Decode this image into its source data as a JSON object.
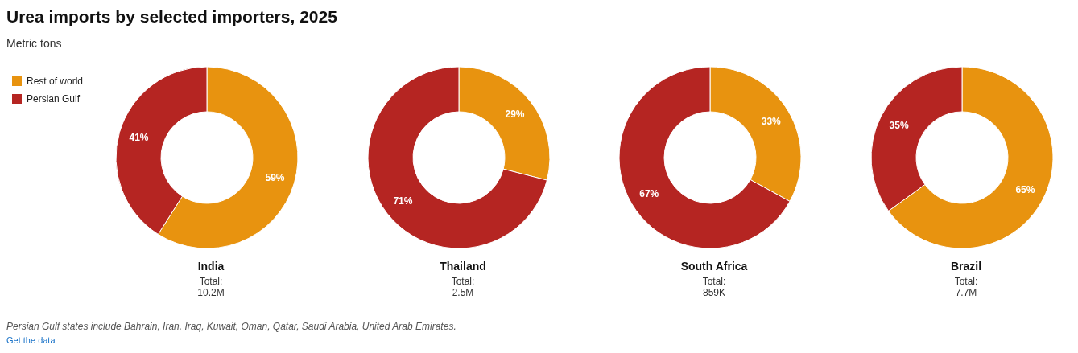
{
  "chart_data": [
    {
      "type": "other",
      "title": "Urea imports by selected importers, 2025",
      "subtitle": "Metric tons",
      "annotations": [
        "Persian Gulf states include Bahrain, Iran, Iraq, Kuwait, Oman, Qatar, Saudi Arabia, United Arab Emirates.",
        "Get the data"
      ]
    },
    {
      "type": "donut",
      "title": "India",
      "annotations": [
        "Total:",
        "10.2M"
      ],
      "categories": [
        "Rest of world",
        "Persian Gulf"
      ],
      "values": [
        59,
        41
      ],
      "value_labels": [
        "59%",
        "41%"
      ],
      "colors": [
        "#e8930f",
        "#b52522"
      ],
      "legend": "top left"
    },
    {
      "type": "donut",
      "title": "Thailand",
      "annotations": [
        "Total:",
        "2.5M"
      ],
      "categories": [
        null,
        null
      ],
      "values": [
        29,
        71
      ],
      "value_labels": [
        "29%",
        "71%"
      ],
      "colors": [
        "#e8930f",
        "#b52522"
      ]
    },
    {
      "type": "donut",
      "title": "South Africa",
      "annotations": [
        "Total:",
        "859K"
      ],
      "categories": [
        null,
        null
      ],
      "values": [
        33,
        67
      ],
      "value_labels": [
        "33%",
        "67%"
      ],
      "colors": [
        "#e8930f",
        "#b52522"
      ]
    },
    {
      "type": "donut",
      "title": "Brazil",
      "annotations": [
        "Total:",
        "7.7M"
      ],
      "categories": [
        null,
        null
      ],
      "values": [
        65,
        35
      ],
      "value_labels": [
        "65%",
        "35%"
      ],
      "colors": [
        "#e8930f",
        "#b52522"
      ]
    }
  ]
}
